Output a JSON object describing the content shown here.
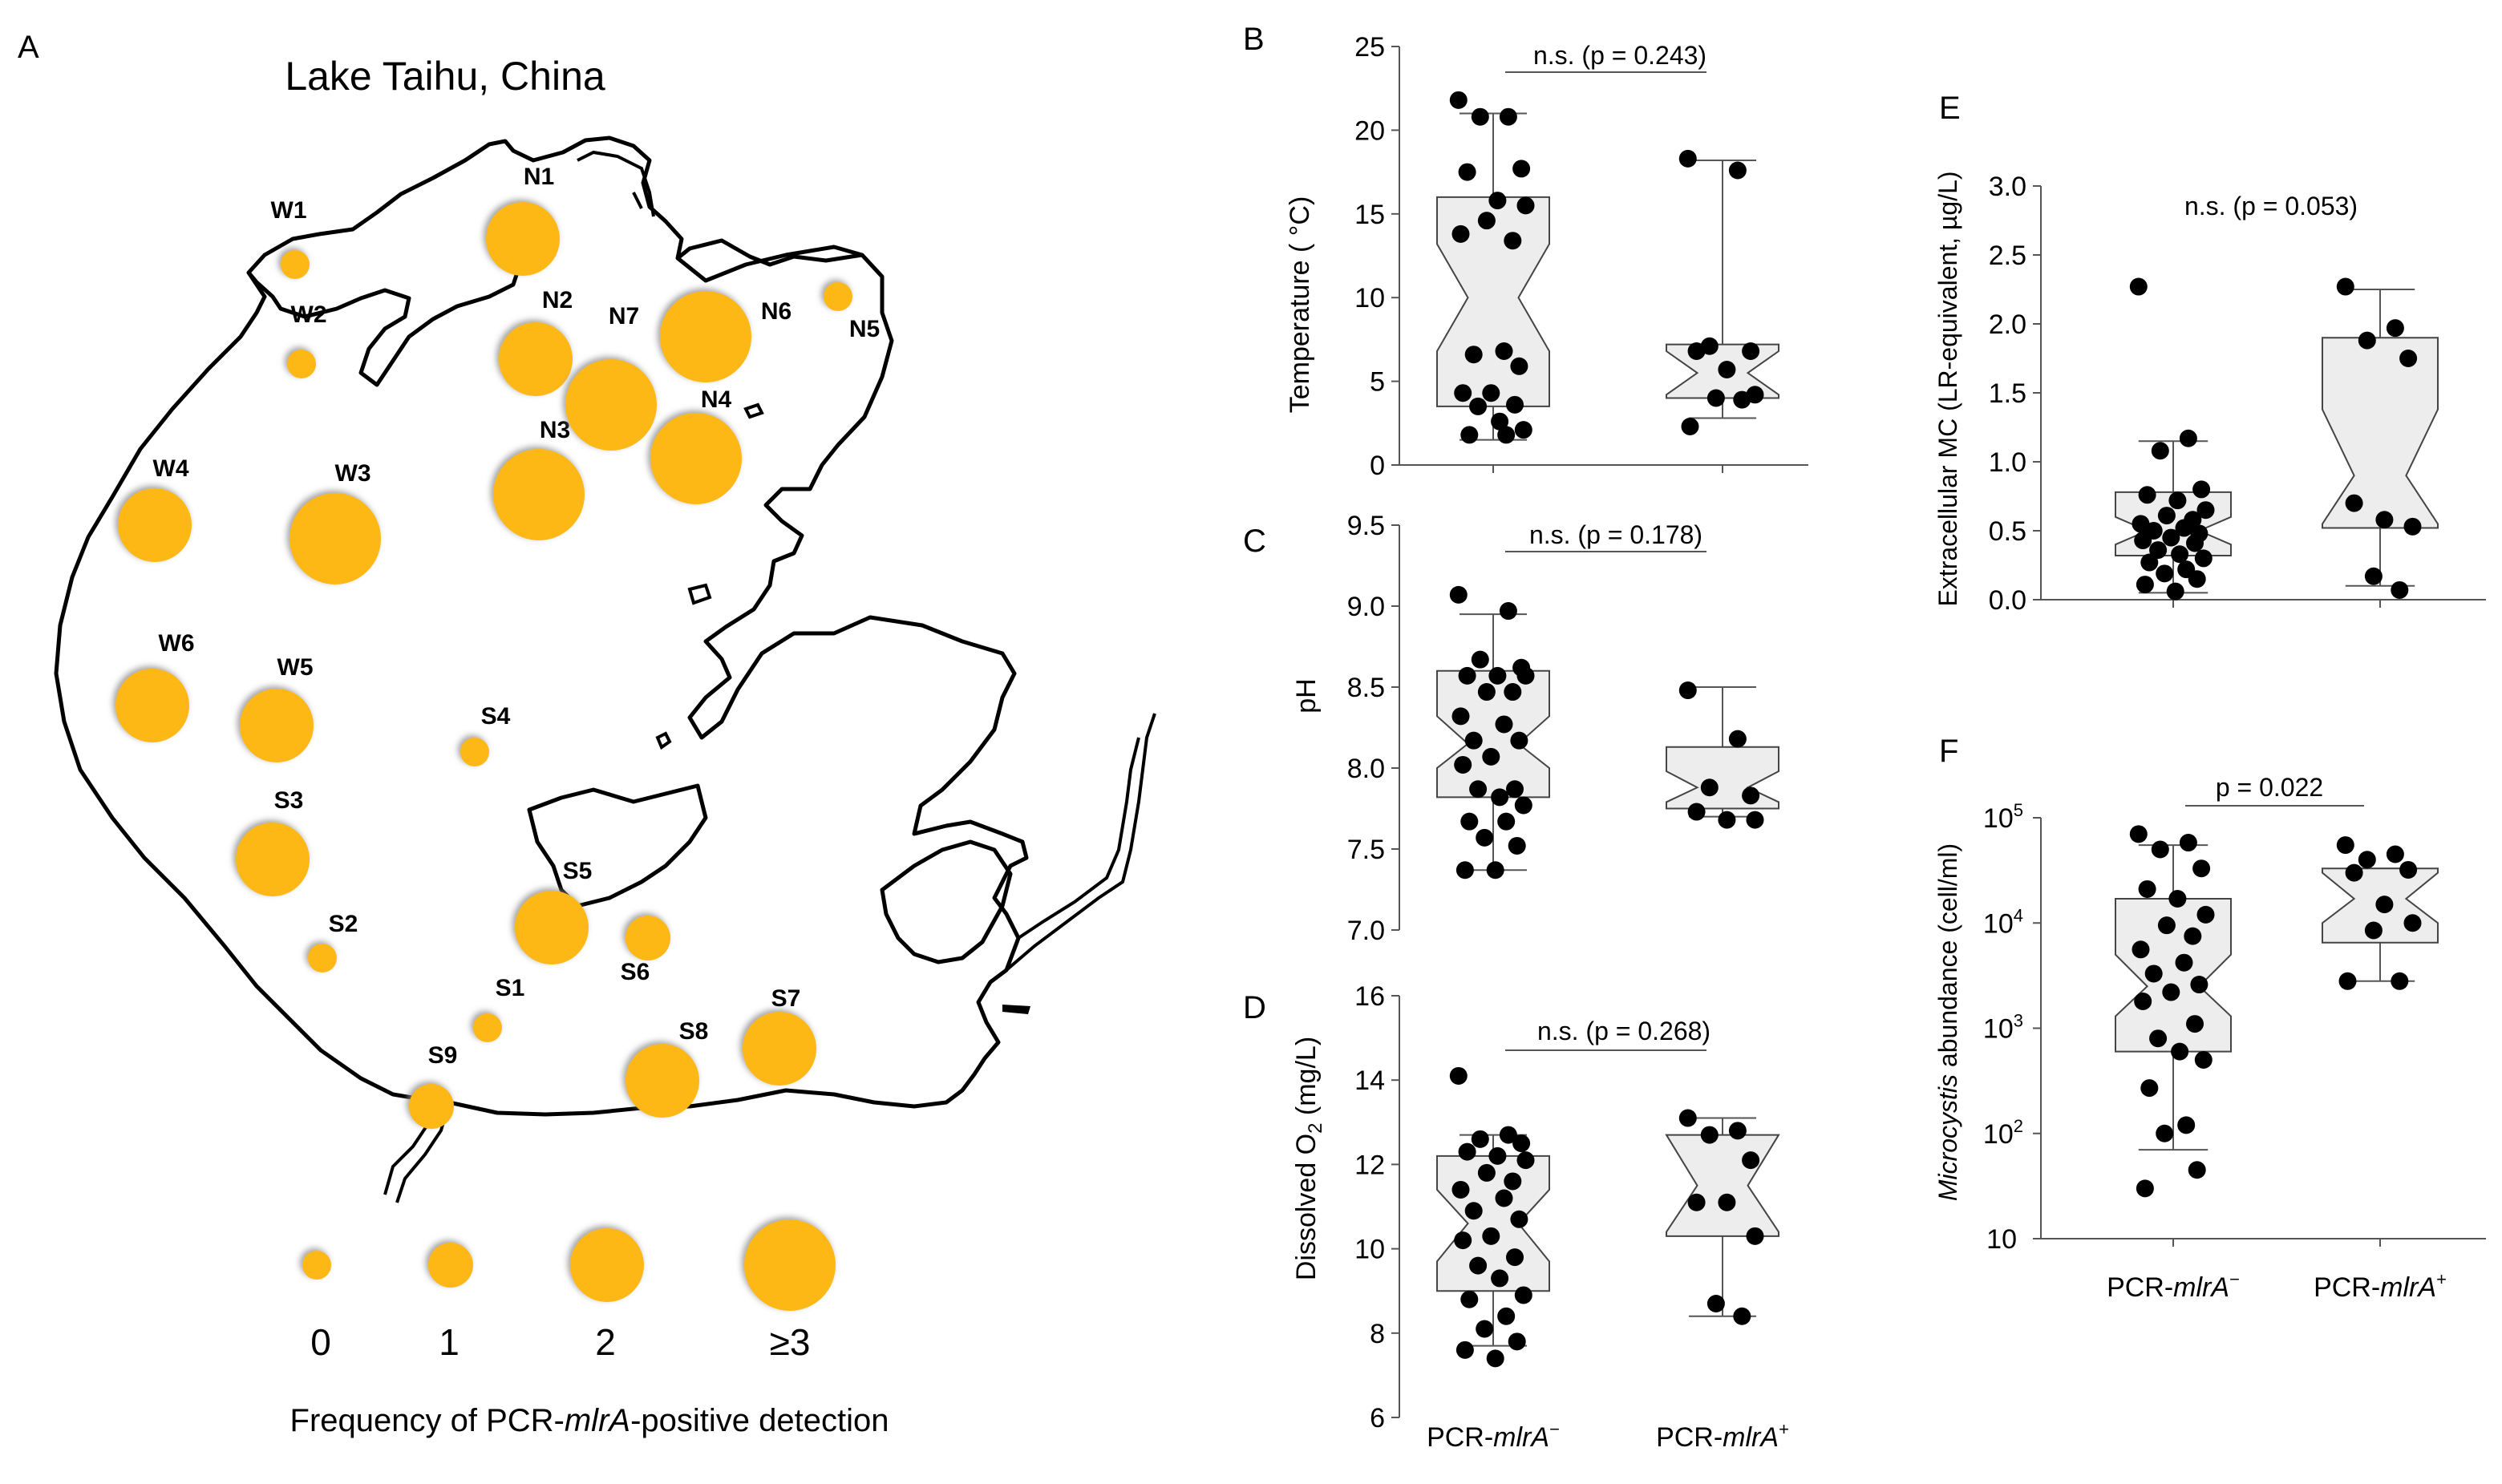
{
  "panel_labels": {
    "a": "A",
    "b": "B",
    "c": "C",
    "d": "D",
    "e": "E",
    "f": "F"
  },
  "colors": {
    "bubble": "#FDB813",
    "bubble_shadow": "#9a9a9a",
    "box_fill": "#EDEDED",
    "point": "#000000",
    "lake_line": "#000000"
  },
  "map": {
    "title": "Lake Taihu, China",
    "legend": {
      "title_prefix": "Frequency of PCR-",
      "title_gene": "mlrA",
      "title_suffix": "-positive detection",
      "labels": [
        "0",
        "1",
        "2",
        "≥3"
      ]
    },
    "sites": [
      {
        "name": "W1",
        "freq": 0
      },
      {
        "name": "W2",
        "freq": 0
      },
      {
        "name": "W3",
        "freq": 3
      },
      {
        "name": "W4",
        "freq": 2
      },
      {
        "name": "W5",
        "freq": 2
      },
      {
        "name": "W6",
        "freq": 2
      },
      {
        "name": "N1",
        "freq": 2
      },
      {
        "name": "N2",
        "freq": 2
      },
      {
        "name": "N3",
        "freq": 3
      },
      {
        "name": "N4",
        "freq": 3
      },
      {
        "name": "N5",
        "freq": 0
      },
      {
        "name": "N6",
        "freq": 3
      },
      {
        "name": "N7",
        "freq": 3
      },
      {
        "name": "S1",
        "freq": 0
      },
      {
        "name": "S2",
        "freq": 0
      },
      {
        "name": "S3",
        "freq": 2
      },
      {
        "name": "S4",
        "freq": 0
      },
      {
        "name": "S5",
        "freq": 2
      },
      {
        "name": "S6",
        "freq": 1
      },
      {
        "name": "S7",
        "freq": 2
      },
      {
        "name": "S8",
        "freq": 2
      },
      {
        "name": "S9",
        "freq": 1
      }
    ]
  },
  "chart_data": [
    {
      "id": "B",
      "type": "box",
      "ylabel": "Temperature ( °C)",
      "ylim": [
        0,
        25
      ],
      "yticks": [
        "0",
        "5",
        "10",
        "15",
        "20",
        "25"
      ],
      "scale": "linear",
      "annotation": "n.s. (p = 0.243)",
      "groups": [
        {
          "name": "PCR-mlrA−",
          "q1": 3.5,
          "median": 10,
          "q3": 16,
          "whisker_low": 1.5,
          "whisker_high": 21,
          "notch_low": 6.8,
          "notch_high": 13.2,
          "points": [
            21.8,
            20.8,
            20.8,
            17.7,
            17.5,
            15.8,
            15.5,
            14.6,
            13.4,
            13.8,
            6.8,
            6.6,
            5.9,
            4.3,
            4.3,
            3.6,
            3.5,
            2.6,
            2.1,
            1.8,
            1.8
          ]
        },
        {
          "name": "PCR-mlrA+",
          "q1": 4,
          "median": 5.5,
          "q3": 7.2,
          "whisker_low": 2.8,
          "whisker_high": 18.2,
          "notch_low": 4.2,
          "notch_high": 6.8,
          "points": [
            18.3,
            17.6,
            7.1,
            6.8,
            6.8,
            5.7,
            4.2,
            4.0,
            3.9,
            2.3
          ]
        }
      ]
    },
    {
      "id": "C",
      "type": "box",
      "ylabel": "pH",
      "ylim": [
        7.0,
        9.5
      ],
      "yticks": [
        "7.0",
        "7.5",
        "8.0",
        "8.5",
        "9.0",
        "9.5"
      ],
      "scale": "linear",
      "annotation": "n.s. (p = 0.178)",
      "groups": [
        {
          "name": "PCR-mlrA−",
          "q1": 7.82,
          "median": 8.15,
          "q3": 8.6,
          "whisker_low": 7.37,
          "whisker_high": 8.95,
          "notch_low": 8.0,
          "notch_high": 8.32,
          "points": [
            9.07,
            8.97,
            8.67,
            8.62,
            8.57,
            8.57,
            8.57,
            8.47,
            8.47,
            8.32,
            8.27,
            8.17,
            8.17,
            8.07,
            8.02,
            7.87,
            7.87,
            7.82,
            7.77,
            7.67,
            7.67,
            7.57,
            7.52,
            7.37,
            7.37
          ]
        },
        {
          "name": "PCR-mlrA+",
          "q1": 7.75,
          "median": 7.88,
          "q3": 8.13,
          "whisker_low": 7.7,
          "whisker_high": 8.5,
          "notch_low": 7.79,
          "notch_high": 7.98,
          "points": [
            8.48,
            8.18,
            7.88,
            7.83,
            7.73,
            7.68,
            7.68
          ]
        }
      ]
    },
    {
      "id": "D",
      "type": "box",
      "ylabel_main": "Dissolved O",
      "ylabel_sub": "2",
      "ylabel_unit": " (mg/L)",
      "ylim": [
        6,
        16
      ],
      "yticks": [
        "6",
        "8",
        "10",
        "12",
        "14",
        "16"
      ],
      "scale": "linear",
      "annotation": "n.s. (p = 0.268)",
      "groups": [
        {
          "name": "PCR-mlrA−",
          "q1": 9.0,
          "median": 10.6,
          "q3": 12.2,
          "whisker_low": 7.7,
          "whisker_high": 12.7,
          "notch_low": 9.7,
          "notch_high": 11.4,
          "points": [
            14.1,
            12.7,
            12.6,
            12.5,
            12.3,
            12.2,
            12.1,
            11.8,
            11.6,
            11.4,
            11.2,
            10.9,
            10.7,
            10.3,
            10.2,
            9.8,
            9.6,
            9.3,
            8.9,
            8.8,
            8.4,
            8.1,
            7.8,
            7.6,
            7.4
          ]
        },
        {
          "name": "PCR-mlrA+",
          "q1": 10.3,
          "median": 11.5,
          "q3": 12.7,
          "whisker_low": 8.4,
          "whisker_high": 13.1,
          "notch_low": 10.4,
          "notch_high": 12.7,
          "points": [
            13.1,
            12.8,
            12.7,
            12.1,
            11.1,
            11.1,
            10.3,
            8.7,
            8.4
          ]
        }
      ]
    },
    {
      "id": "E",
      "type": "box",
      "ylabel": "Extracellular MC (LR-equivalent, µg/L)",
      "ylim": [
        0,
        3.0
      ],
      "yticks": [
        "0.0",
        "0.5",
        "1.0",
        "1.5",
        "2.0",
        "2.5",
        "3.0"
      ],
      "scale": "linear",
      "annotation": "n.s. (p = 0.053)",
      "groups": [
        {
          "name": "PCR-mlrA−",
          "q1": 0.32,
          "median": 0.5,
          "q3": 0.78,
          "whisker_low": 0.05,
          "whisker_high": 1.15,
          "notch_low": 0.4,
          "notch_high": 0.6,
          "points": [
            2.27,
            1.17,
            1.08,
            0.8,
            0.76,
            0.72,
            0.65,
            0.61,
            0.58,
            0.55,
            0.52,
            0.5,
            0.48,
            0.45,
            0.43,
            0.41,
            0.36,
            0.33,
            0.3,
            0.27,
            0.22,
            0.19,
            0.15,
            0.11,
            0.06
          ]
        },
        {
          "name": "PCR-mlrA+",
          "q1": 0.52,
          "median": 0.9,
          "q3": 1.9,
          "whisker_low": 0.1,
          "whisker_high": 2.25,
          "notch_low": 0.55,
          "notch_high": 1.38,
          "points": [
            2.27,
            1.97,
            1.88,
            1.75,
            0.7,
            0.58,
            0.53,
            0.17,
            0.07
          ]
        }
      ]
    },
    {
      "id": "F",
      "type": "box",
      "ylabel_italic": "Microcystis",
      "ylabel_rest": " abundance (cell/ml)",
      "scale": "log10",
      "ylim": [
        10,
        100000
      ],
      "yticks": [
        {
          "base": "10",
          "exp": ""
        },
        {
          "base": "10",
          "exp": "2"
        },
        {
          "base": "10",
          "exp": "3"
        },
        {
          "base": "10",
          "exp": "4"
        },
        {
          "base": "10",
          "exp": "5"
        }
      ],
      "annotation": "p = 0.022",
      "xlabels": [
        {
          "pre": "PCR-",
          "gene": "mlrA",
          "sup": "−"
        },
        {
          "pre": "PCR-",
          "gene": "mlrA",
          "sup": "+"
        }
      ],
      "groups": [
        {
          "name": "PCR-mlrA−",
          "q1": 600,
          "median": 2500,
          "q3": 17000,
          "whisker_low": 70,
          "whisker_high": 55000,
          "notch_low": 1300,
          "notch_high": 5000,
          "points": [
            70000,
            58000,
            50000,
            33000,
            21000,
            17000,
            12000,
            9500,
            7500,
            5600,
            4200,
            3300,
            2600,
            2200,
            1800,
            1100,
            800,
            600,
            500,
            270,
            120,
            100,
            45,
            30
          ]
        },
        {
          "name": "PCR-mlrA+",
          "q1": 6500,
          "median": 17000,
          "q3": 33000,
          "whisker_low": 2800,
          "whisker_high": 33000,
          "notch_low": 10000,
          "notch_high": 30000,
          "points": [
            55000,
            45000,
            40000,
            32000,
            30000,
            15000,
            10000,
            8500,
            2800,
            2800
          ]
        }
      ]
    }
  ],
  "shared_xlabels": [
    {
      "pre": "PCR-",
      "gene": "mlrA",
      "sup": "−"
    },
    {
      "pre": "PCR-",
      "gene": "mlrA",
      "sup": "+"
    }
  ]
}
